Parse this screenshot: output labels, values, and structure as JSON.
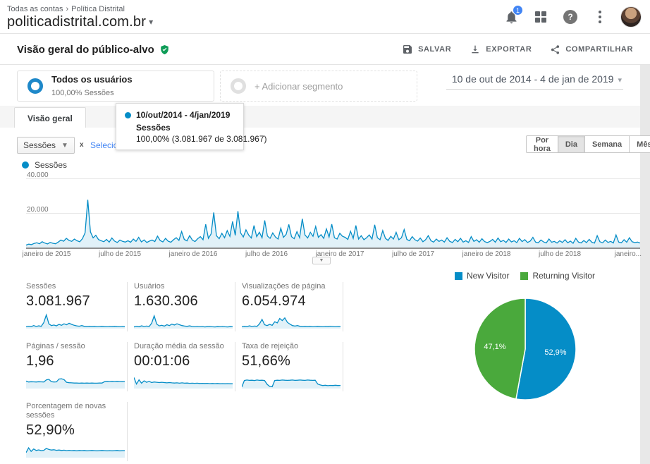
{
  "header": {
    "breadcrumb_1": "Todas as contas",
    "breadcrumb_sep": "›",
    "breadcrumb_2": "Política Distrital",
    "title": "politicadistrital.com.br",
    "title_caret": "▾",
    "notification_count": "1"
  },
  "report_bar": {
    "title": "Visão geral do público-alvo",
    "save_label": "SALVAR",
    "export_label": "EXPORTAR",
    "share_label": "COMPARTILHAR"
  },
  "segments": {
    "all_users_title": "Todos os usuários",
    "all_users_subtitle": "100,00% Sessões",
    "add_segment_label": "+ Adicionar segmento",
    "date_range": "10 de out de 2014 - 4 de jan de 2019",
    "date_caret": "▾"
  },
  "tabs": {
    "overview": "Visão geral"
  },
  "tooltip": {
    "date_range": "10/out/2014 - 4/jan/2019",
    "metric": "Sessões",
    "value": "100,00% (3.081.967 de 3.081.967)"
  },
  "explorer": {
    "metric_select": "Sessões",
    "metric_caret": "▼",
    "vs_label": "x",
    "compare_link": "Selecione u",
    "granularity": [
      "Por hora",
      "Dia",
      "Semana",
      "Mês"
    ],
    "collapse_caret": "▼"
  },
  "colors": {
    "chart_blue": "#058dc7",
    "pie_green": "#4aa93c",
    "accent_blue": "#4285f4",
    "verified_green": "#0f9d58"
  },
  "chart_data": {
    "type": "area",
    "title": "Sessões",
    "legend_label": "Sessões",
    "ylim": [
      0,
      40000
    ],
    "y_ticks": [
      "40.000",
      "20.000"
    ],
    "x_ticks": [
      "janeiro de 2015",
      "julho de 2015",
      "janeiro de 2016",
      "julho de 2016",
      "janeiro de 2017",
      "julho de 2017",
      "janeiro de 2018",
      "julho de 2018",
      "janeiro..."
    ],
    "values": [
      1200,
      1800,
      1500,
      2200,
      2600,
      2000,
      3200,
      2400,
      1900,
      2800,
      2300,
      2000,
      3000,
      4200,
      3500,
      5200,
      4000,
      3400,
      4800,
      3800,
      3200,
      5000,
      8500,
      28000,
      9000,
      5500,
      7000,
      4500,
      3800,
      3200,
      4600,
      3000,
      5400,
      3600,
      2800,
      4200,
      3400,
      3000,
      3800,
      2900,
      4800,
      3400,
      5800,
      3100,
      4300,
      2800,
      3600,
      4200,
      3300,
      6500,
      3900,
      3100,
      5200,
      3500,
      2900,
      4400,
      5600,
      4000,
      9200,
      4600,
      3700,
      6800,
      4200,
      3300,
      5000,
      6200,
      4400,
      13500,
      5200,
      7800,
      20500,
      6800,
      5000,
      8200,
      5600,
      9800,
      6400,
      15200,
      7000,
      21300,
      8400,
      6000,
      10200,
      7200,
      5400,
      12800,
      6200,
      8800,
      5600,
      15800,
      6600,
      5200,
      8400,
      6000,
      4800,
      11200,
      5800,
      7600,
      13400,
      6200,
      5000,
      9200,
      5600,
      16800,
      7200,
      5400,
      8800,
      6400,
      12200,
      5800,
      7400,
      5200,
      10800,
      6000,
      13600,
      5600,
      4800,
      8200,
      6400,
      5800,
      4600,
      9400,
      5200,
      12800,
      4800,
      6800,
      4400,
      5600,
      7200,
      4800,
      13200,
      5600,
      4400,
      9800,
      5200,
      4000,
      6400,
      4800,
      8800,
      4400,
      5600,
      10400,
      4600,
      3800,
      6200,
      4400,
      3600,
      5400,
      3200,
      4400,
      6800,
      3800,
      3000,
      4800,
      3400,
      4200,
      3000,
      5600,
      3400,
      2800,
      4600,
      3200,
      5200,
      3000,
      3800,
      2800,
      6200,
      3400,
      4400,
      2900,
      5000,
      3300,
      2700,
      3400,
      4600,
      2900,
      5400,
      3200,
      4000,
      2800,
      4800,
      3100,
      3800,
      2700,
      5200,
      3300,
      4400,
      2800,
      3600,
      5800,
      3000,
      2600,
      4200,
      3100,
      2500,
      4800,
      2900,
      3400,
      2400,
      3800,
      2800,
      4400,
      2600,
      3600,
      2300,
      5200,
      3000,
      2500,
      3900,
      2700,
      4600,
      2900,
      2400,
      6800,
      3200,
      2600,
      4200,
      2800,
      3400,
      2500,
      7200,
      3000,
      2600,
      4400,
      2900,
      5600,
      3200,
      2700,
      3000,
      2400
    ]
  },
  "metrics": [
    {
      "label": "Sessões",
      "value": "3.081.967",
      "spark": [
        10,
        14,
        11,
        18,
        12,
        16,
        13,
        38,
        90,
        30,
        18,
        22,
        16,
        26,
        20,
        30,
        24,
        34,
        26,
        20,
        16,
        14,
        18,
        13,
        11,
        13,
        11,
        13,
        10,
        12,
        13,
        11,
        10,
        12,
        11,
        13,
        11,
        10,
        12,
        11
      ]
    },
    {
      "label": "Usuários",
      "value": "1.630.306",
      "spark": [
        9,
        13,
        10,
        16,
        12,
        15,
        12,
        34,
        84,
        28,
        16,
        20,
        15,
        24,
        18,
        28,
        22,
        30,
        24,
        18,
        15,
        13,
        16,
        12,
        10,
        12,
        10,
        12,
        9,
        11,
        12,
        10,
        9,
        11,
        10,
        12,
        10,
        9,
        11,
        10
      ]
    },
    {
      "label": "Visualizações de página",
      "value": "6.054.974",
      "spark": [
        10,
        13,
        11,
        16,
        12,
        15,
        13,
        30,
        60,
        24,
        18,
        26,
        20,
        44,
        36,
        66,
        52,
        70,
        40,
        28,
        18,
        15,
        18,
        13,
        11,
        13,
        11,
        13,
        10,
        12,
        13,
        11,
        10,
        12,
        11,
        14,
        12,
        10,
        12,
        11
      ]
    },
    {
      "label": "Páginas / sessão",
      "value": "1,96",
      "spark": [
        48,
        42,
        44,
        43,
        42,
        44,
        43,
        42,
        56,
        60,
        44,
        42,
        43,
        62,
        64,
        58,
        40,
        37,
        36,
        35,
        35,
        34,
        35,
        34,
        35,
        34,
        35,
        34,
        34,
        35,
        35,
        44,
        46,
        45,
        46,
        45,
        46,
        45,
        44,
        45
      ]
    },
    {
      "label": "Duração média da sessão",
      "value": "00:01:06",
      "spark": [
        72,
        28,
        56,
        34,
        50,
        40,
        46,
        38,
        42,
        40,
        38,
        40,
        38,
        36,
        38,
        36,
        35,
        36,
        34,
        36,
        34,
        35,
        33,
        34,
        33,
        34,
        32,
        33,
        32,
        33,
        31,
        32,
        31,
        32,
        30,
        31,
        30,
        31,
        30,
        30
      ]
    },
    {
      "label": "Taxa de rejeição",
      "value": "51,66%",
      "spark": [
        8,
        52,
        55,
        53,
        54,
        52,
        55,
        53,
        54,
        52,
        26,
        12,
        10,
        52,
        54,
        53,
        55,
        54,
        53,
        54,
        55,
        53,
        54,
        55,
        54,
        53,
        55,
        54,
        53,
        54,
        28,
        22,
        18,
        20,
        17,
        19,
        18,
        20,
        18,
        19
      ]
    },
    {
      "label": "Porcentagem de novas sessões",
      "value": "52,90%",
      "spark": [
        32,
        64,
        40,
        56,
        46,
        50,
        45,
        47,
        60,
        53,
        49,
        51,
        47,
        49,
        46,
        48,
        45,
        47,
        45,
        46,
        44,
        46,
        45,
        46,
        44,
        45,
        46,
        45,
        44,
        45,
        46,
        45,
        44,
        45,
        44,
        45,
        46,
        44,
        45,
        45
      ]
    }
  ],
  "pie": {
    "type": "pie",
    "legend": [
      {
        "name": "New Visitor",
        "color": "#058dc7"
      },
      {
        "name": "Returning Visitor",
        "color": "#4aa93c"
      }
    ],
    "slices": [
      {
        "name": "New Visitor",
        "pct": 52.9,
        "label": "52,9%",
        "color": "#058dc7"
      },
      {
        "name": "Returning Visitor",
        "pct": 47.1,
        "label": "47,1%",
        "color": "#4aa93c"
      }
    ]
  }
}
